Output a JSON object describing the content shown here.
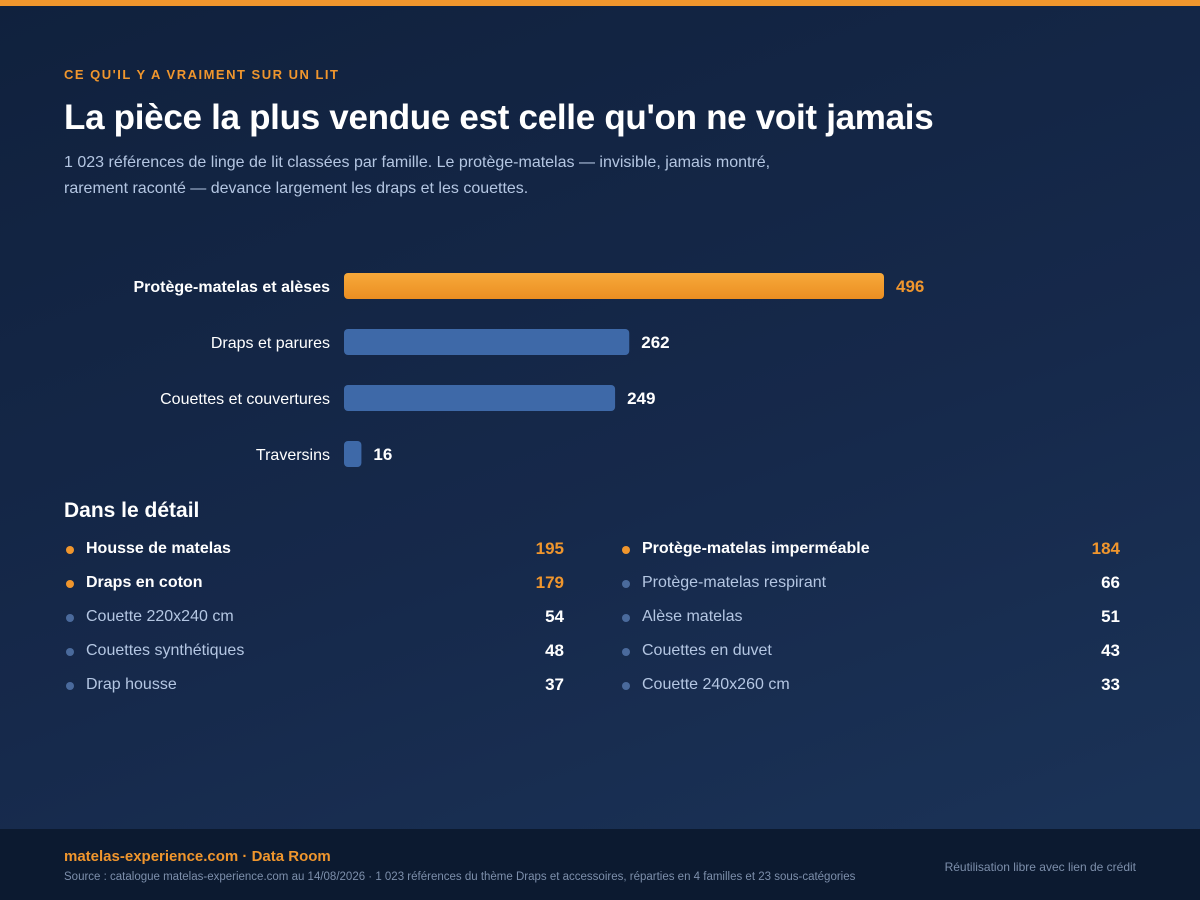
{
  "header": {
    "kicker": "CE QU'IL Y A VRAIMENT SUR UN LIT",
    "title": "La pièce la plus vendue est celle qu'on ne voit jamais",
    "subtitle": "1 023 références de linge de lit classées par famille. Le protège-matelas — invisible, jamais montré, rarement raconté — devance largement les draps et les couettes."
  },
  "colors": {
    "accent": "#f0962d",
    "bar": "#3e69a8",
    "background": "#16294b",
    "muted_text": "#b4c6e2"
  },
  "chart_data": {
    "type": "bar",
    "orientation": "horizontal",
    "categories": [
      "Protège-matelas et alèses",
      "Draps et parures",
      "Couettes et couvertures",
      "Traversins"
    ],
    "values": [
      496,
      262,
      249,
      16
    ],
    "highlight": "Protège-matelas et alèses",
    "grid": false,
    "legend": "none"
  },
  "detail": {
    "title": "Dans le détail",
    "left": [
      {
        "label": "Housse de matelas",
        "value": "195",
        "highlight": true
      },
      {
        "label": "Draps en coton",
        "value": "179",
        "highlight": true
      },
      {
        "label": "Couette 220x240 cm",
        "value": "54",
        "highlight": false
      },
      {
        "label": "Couettes synthétiques",
        "value": "48",
        "highlight": false
      },
      {
        "label": "Drap housse",
        "value": "37",
        "highlight": false
      }
    ],
    "right": [
      {
        "label": "Protège-matelas imperméable",
        "value": "184",
        "highlight": true
      },
      {
        "label": "Protège-matelas respirant",
        "value": "66",
        "highlight": false
      },
      {
        "label": "Alèse matelas",
        "value": "51",
        "highlight": false
      },
      {
        "label": "Couettes en duvet",
        "value": "43",
        "highlight": false
      },
      {
        "label": "Couette 240x260 cm",
        "value": "33",
        "highlight": false
      }
    ]
  },
  "footer": {
    "brand": "matelas-experience.com · Data Room",
    "source": "Source : catalogue matelas-experience.com au 14/08/2026 · 1 023 références du thème Draps et accessoires, réparties en 4 familles et 23 sous-catégories",
    "credit": "Réutilisation libre avec lien de crédit"
  }
}
